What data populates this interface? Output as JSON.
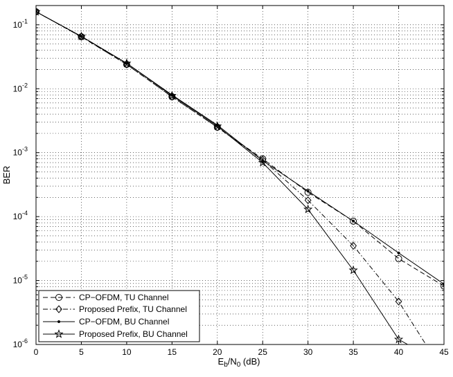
{
  "chart_data": {
    "type": "line",
    "title": "",
    "xlabel": "E_b/N_0 (dB)",
    "xlabel_parts": {
      "main": "E",
      "sub1": "b",
      "mid": "/N",
      "sub2": "0",
      "tail": " (dB)"
    },
    "ylabel": "BER",
    "xlim": [
      0,
      45
    ],
    "ylim": [
      1e-06,
      0.2
    ],
    "yscale": "log",
    "grid": true,
    "legend_position": "bottom-left",
    "x_ticks": [
      0,
      5,
      10,
      15,
      20,
      25,
      30,
      35,
      40,
      45
    ],
    "x_tick_labels": [
      "0",
      "5",
      "10",
      "15",
      "20",
      "25",
      "30",
      "35",
      "40",
      "45"
    ],
    "y_ticks": [
      1e-06,
      1e-05,
      0.0001,
      0.001,
      0.01,
      0.1
    ],
    "y_tick_labels": [
      {
        "base": "10",
        "exp": "-6"
      },
      {
        "base": "10",
        "exp": "-5"
      },
      {
        "base": "10",
        "exp": "-4"
      },
      {
        "base": "10",
        "exp": "-3"
      },
      {
        "base": "10",
        "exp": "-2"
      },
      {
        "base": "10",
        "exp": "-1"
      }
    ],
    "series": [
      {
        "name": "CP−OFDM, TU Channel",
        "linestyle": "dashed",
        "marker": "circle",
        "x": [
          0,
          5,
          10,
          15,
          20,
          25,
          30,
          35,
          40,
          45
        ],
        "y": [
          0.16,
          0.065,
          0.024,
          0.0075,
          0.0025,
          0.0008,
          0.00024,
          8.5e-05,
          2.2e-05,
          8.2e-06
        ]
      },
      {
        "name": "Proposed Prefix, TU Channel",
        "linestyle": "dashdot",
        "marker": "diamond",
        "x": [
          0,
          5,
          10,
          15,
          20,
          25,
          30,
          35,
          40,
          43
        ],
        "y": [
          0.16,
          0.065,
          0.024,
          0.0075,
          0.0025,
          0.00077,
          0.00018,
          3.5e-05,
          4.7e-06,
          1e-06
        ]
      },
      {
        "name": "CP−OFDM, BU Channel",
        "linestyle": "solid",
        "marker": "dot",
        "x": [
          0,
          5,
          10,
          15,
          20,
          25,
          30,
          35,
          40,
          45
        ],
        "y": [
          0.16,
          0.066,
          0.025,
          0.008,
          0.0027,
          0.00075,
          0.00025,
          8.5e-05,
          2.7e-05,
          8.8e-06
        ]
      },
      {
        "name": "Proposed Prefix, BU Channel",
        "linestyle": "solid",
        "marker": "star",
        "x": [
          0,
          5,
          10,
          15,
          20,
          25,
          30,
          35,
          40,
          41
        ],
        "y": [
          0.16,
          0.066,
          0.025,
          0.0078,
          0.0026,
          0.0007,
          0.00013,
          1.45e-05,
          1.2e-06,
          1e-06
        ]
      }
    ]
  }
}
